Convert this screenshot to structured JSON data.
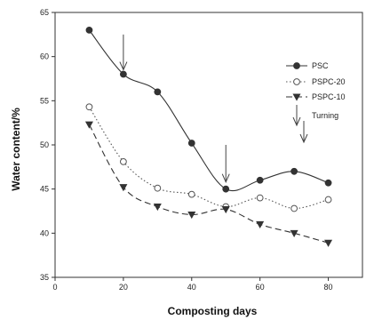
{
  "chart_data": {
    "type": "line",
    "xlabel": "Composting days",
    "ylabel": "Water content/%",
    "xlim": [
      0,
      90
    ],
    "ylim": [
      35,
      65
    ],
    "xticks": [
      0,
      20,
      40,
      60,
      80
    ],
    "yticks": [
      35,
      40,
      45,
      50,
      55,
      60,
      65
    ],
    "grid": false,
    "legend_position": "right",
    "series": [
      {
        "name": "PSC",
        "marker": "filled-circle",
        "line_style": "solid",
        "color": "#333333",
        "x": [
          10,
          20,
          30,
          40,
          50,
          60,
          70,
          80
        ],
        "y": [
          63.0,
          58.0,
          56.0,
          50.2,
          45.0,
          46.0,
          47.0,
          45.7
        ]
      },
      {
        "name": "PSPC-20",
        "marker": "open-circle",
        "line_style": "dotted",
        "color": "#555555",
        "x": [
          10,
          20,
          30,
          40,
          50,
          60,
          70,
          80
        ],
        "y": [
          54.3,
          48.1,
          45.1,
          44.4,
          43.0,
          44.0,
          42.8,
          43.8
        ]
      },
      {
        "name": "PSPC-10",
        "marker": "filled-triangle-down",
        "line_style": "dashed",
        "color": "#333333",
        "x": [
          10,
          20,
          30,
          40,
          50,
          60,
          70,
          80
        ],
        "y": [
          52.3,
          45.2,
          43.0,
          42.1,
          42.7,
          41.0,
          40.0,
          38.9
        ]
      }
    ],
    "annotations": {
      "turning_label": "Turning",
      "turning_arrows": [
        {
          "x": 20,
          "y_top": 62.5,
          "y_bottom": 58.5
        },
        {
          "x": 50,
          "y_top": 50.0,
          "y_bottom": 45.8
        }
      ]
    }
  }
}
